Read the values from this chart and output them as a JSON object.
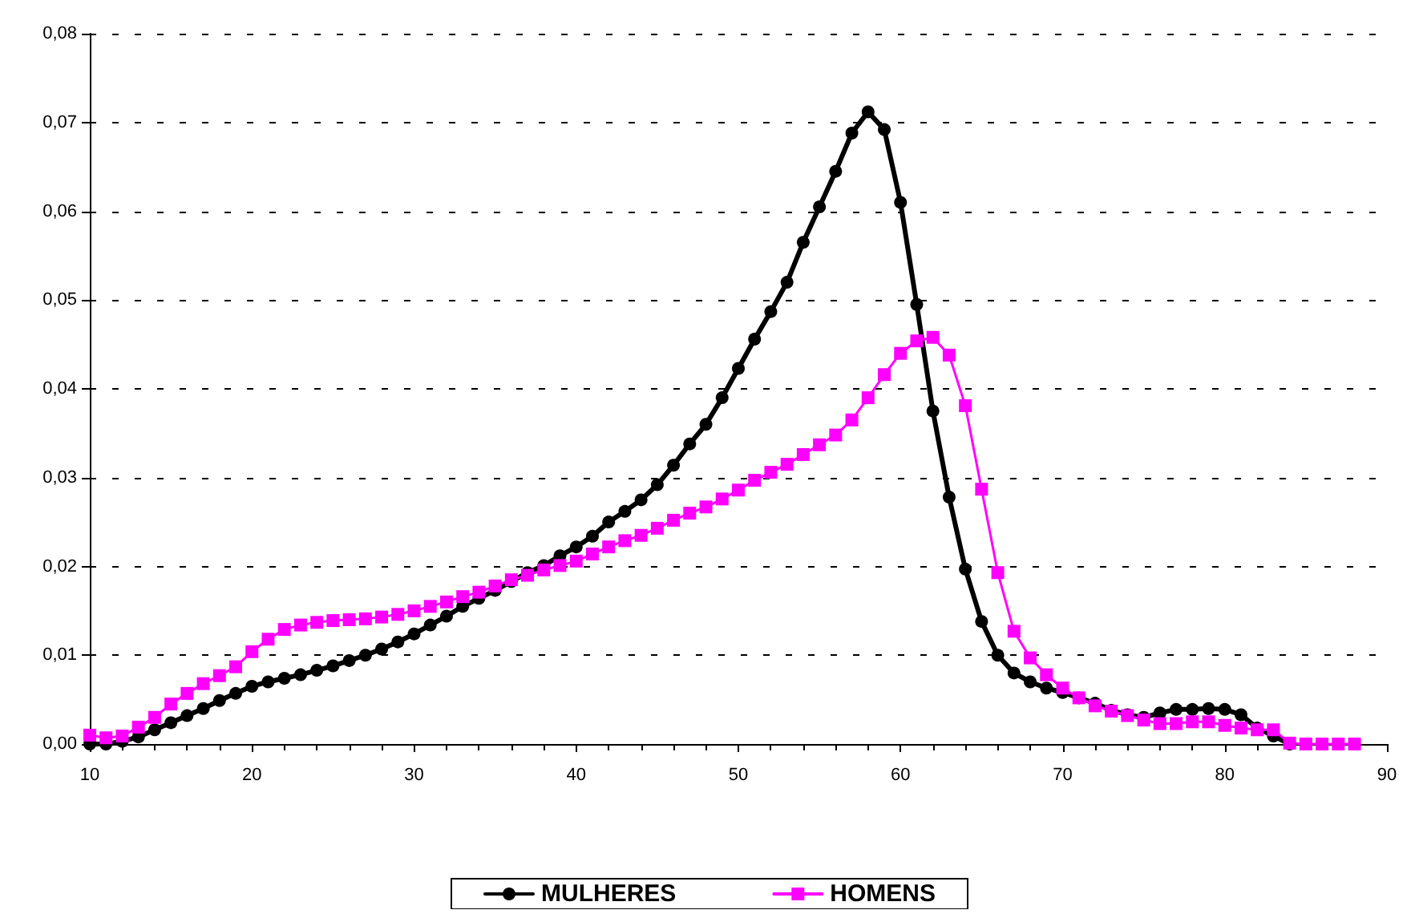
{
  "chart_data": {
    "type": "line",
    "x": [
      10,
      11,
      12,
      13,
      14,
      15,
      16,
      17,
      18,
      19,
      20,
      21,
      22,
      23,
      24,
      25,
      26,
      27,
      28,
      29,
      30,
      31,
      32,
      33,
      34,
      35,
      36,
      37,
      38,
      39,
      40,
      41,
      42,
      43,
      44,
      45,
      46,
      47,
      48,
      49,
      50,
      51,
      52,
      53,
      54,
      55,
      56,
      57,
      58,
      59,
      60,
      61,
      62,
      63,
      64,
      65,
      66,
      67,
      68,
      69,
      70,
      71,
      72,
      73,
      74,
      75,
      76,
      77,
      78,
      79,
      80,
      81,
      82,
      83,
      84,
      85,
      86,
      87,
      88
    ],
    "series": [
      {
        "name": "MULHERES",
        "color": "#000000",
        "marker": "circle",
        "values": [
          0,
          0,
          0.0003,
          0.0008,
          0.0016,
          0.0024,
          0.0032,
          0.004,
          0.0049,
          0.0057,
          0.0065,
          0.007,
          0.0074,
          0.0078,
          0.0083,
          0.0088,
          0.0094,
          0.01,
          0.0107,
          0.0115,
          0.0124,
          0.0134,
          0.0144,
          0.0155,
          0.0164,
          0.0173,
          0.0183,
          0.0193,
          0.0201,
          0.0212,
          0.0222,
          0.0234,
          0.025,
          0.0262,
          0.0275,
          0.0292,
          0.0314,
          0.0338,
          0.036,
          0.039,
          0.0423,
          0.0456,
          0.0487,
          0.052,
          0.0565,
          0.0605,
          0.0645,
          0.0688,
          0.0712,
          0.0692,
          0.061,
          0.0495,
          0.0375,
          0.0278,
          0.0197,
          0.0138,
          0.01,
          0.008,
          0.007,
          0.0063,
          0.0058,
          0.0052,
          0.0046,
          0.0038,
          0.0033,
          0.003,
          0.0035,
          0.0039,
          0.0039,
          0.004,
          0.0039,
          0.0033,
          0.0018,
          0.0009,
          0,
          null,
          null,
          null,
          null
        ]
      },
      {
        "name": "HOMENS",
        "color": "#ff00ff",
        "marker": "square",
        "values": [
          0.001,
          0.0007,
          0.0009,
          0.0019,
          0.003,
          0.0045,
          0.0057,
          0.0068,
          0.0077,
          0.0087,
          0.0104,
          0.0118,
          0.0129,
          0.0134,
          0.0137,
          0.0139,
          0.014,
          0.0141,
          0.0143,
          0.0146,
          0.015,
          0.0155,
          0.016,
          0.0166,
          0.0171,
          0.0178,
          0.0185,
          0.019,
          0.0196,
          0.0201,
          0.0206,
          0.0214,
          0.0222,
          0.0229,
          0.0235,
          0.0243,
          0.0252,
          0.026,
          0.0267,
          0.0276,
          0.0286,
          0.0297,
          0.0306,
          0.0315,
          0.0326,
          0.0337,
          0.0348,
          0.0365,
          0.039,
          0.0416,
          0.044,
          0.0454,
          0.0458,
          0.0438,
          0.0381,
          0.0287,
          0.0193,
          0.0127,
          0.0097,
          0.0078,
          0.0063,
          0.0052,
          0.0043,
          0.0037,
          0.0032,
          0.0027,
          0.0023,
          0.0023,
          0.0025,
          0.0025,
          0.0021,
          0.0018,
          0.0016,
          0.0016,
          0.0001,
          0,
          0,
          0,
          0
        ]
      }
    ],
    "xlim": [
      10,
      90
    ],
    "xticks": [
      10,
      20,
      30,
      40,
      50,
      60,
      70,
      80,
      90
    ],
    "ylim": [
      0,
      0.08
    ],
    "yticks": [
      {
        "value": 0,
        "label": "0,00"
      },
      {
        "value": 0.01,
        "label": "0,01"
      },
      {
        "value": 0.02,
        "label": "0,02"
      },
      {
        "value": 0.03,
        "label": "0,03"
      },
      {
        "value": 0.04,
        "label": "0,04"
      },
      {
        "value": 0.05,
        "label": "0,05"
      },
      {
        "value": 0.06,
        "label": "0,06"
      },
      {
        "value": 0.07,
        "label": "0,07"
      },
      {
        "value": 0.08,
        "label": "0,08"
      }
    ],
    "grid": "y",
    "legend": "bottom",
    "line_style": "solid"
  }
}
